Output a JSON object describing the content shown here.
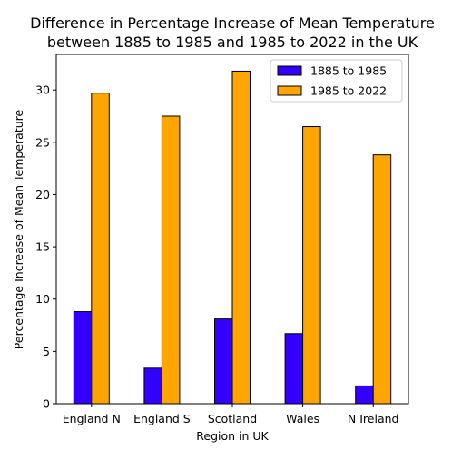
{
  "chart_data": {
    "type": "bar",
    "title": "Difference in Percentage Increase of Mean Temperature\nbetween 1885 to 1985 and 1985 to 2022 in the UK",
    "title_lines": [
      "Difference in Percentage Increase of Mean Temperature",
      "between 1885 to 1985 and 1985 to 2022 in the UK"
    ],
    "xlabel": "Region in UK",
    "ylabel": "Percentage Increase of Mean Temperature",
    "categories": [
      "England N",
      "England S",
      "Scotland",
      "Wales",
      "N Ireland"
    ],
    "series": [
      {
        "name": "1885 to 1985",
        "color": "#3300ff",
        "values": [
          8.8,
          3.4,
          8.1,
          6.7,
          1.7
        ]
      },
      {
        "name": "1985 to 2022",
        "color": "#ffa500",
        "values": [
          29.7,
          27.5,
          31.8,
          26.5,
          23.8
        ]
      }
    ],
    "ylim": [
      0,
      33.4
    ],
    "yticks": [
      0,
      5,
      10,
      15,
      20,
      25,
      30
    ],
    "grid": false,
    "legend_position": "top-right",
    "bar_edge_color": "#000000"
  }
}
